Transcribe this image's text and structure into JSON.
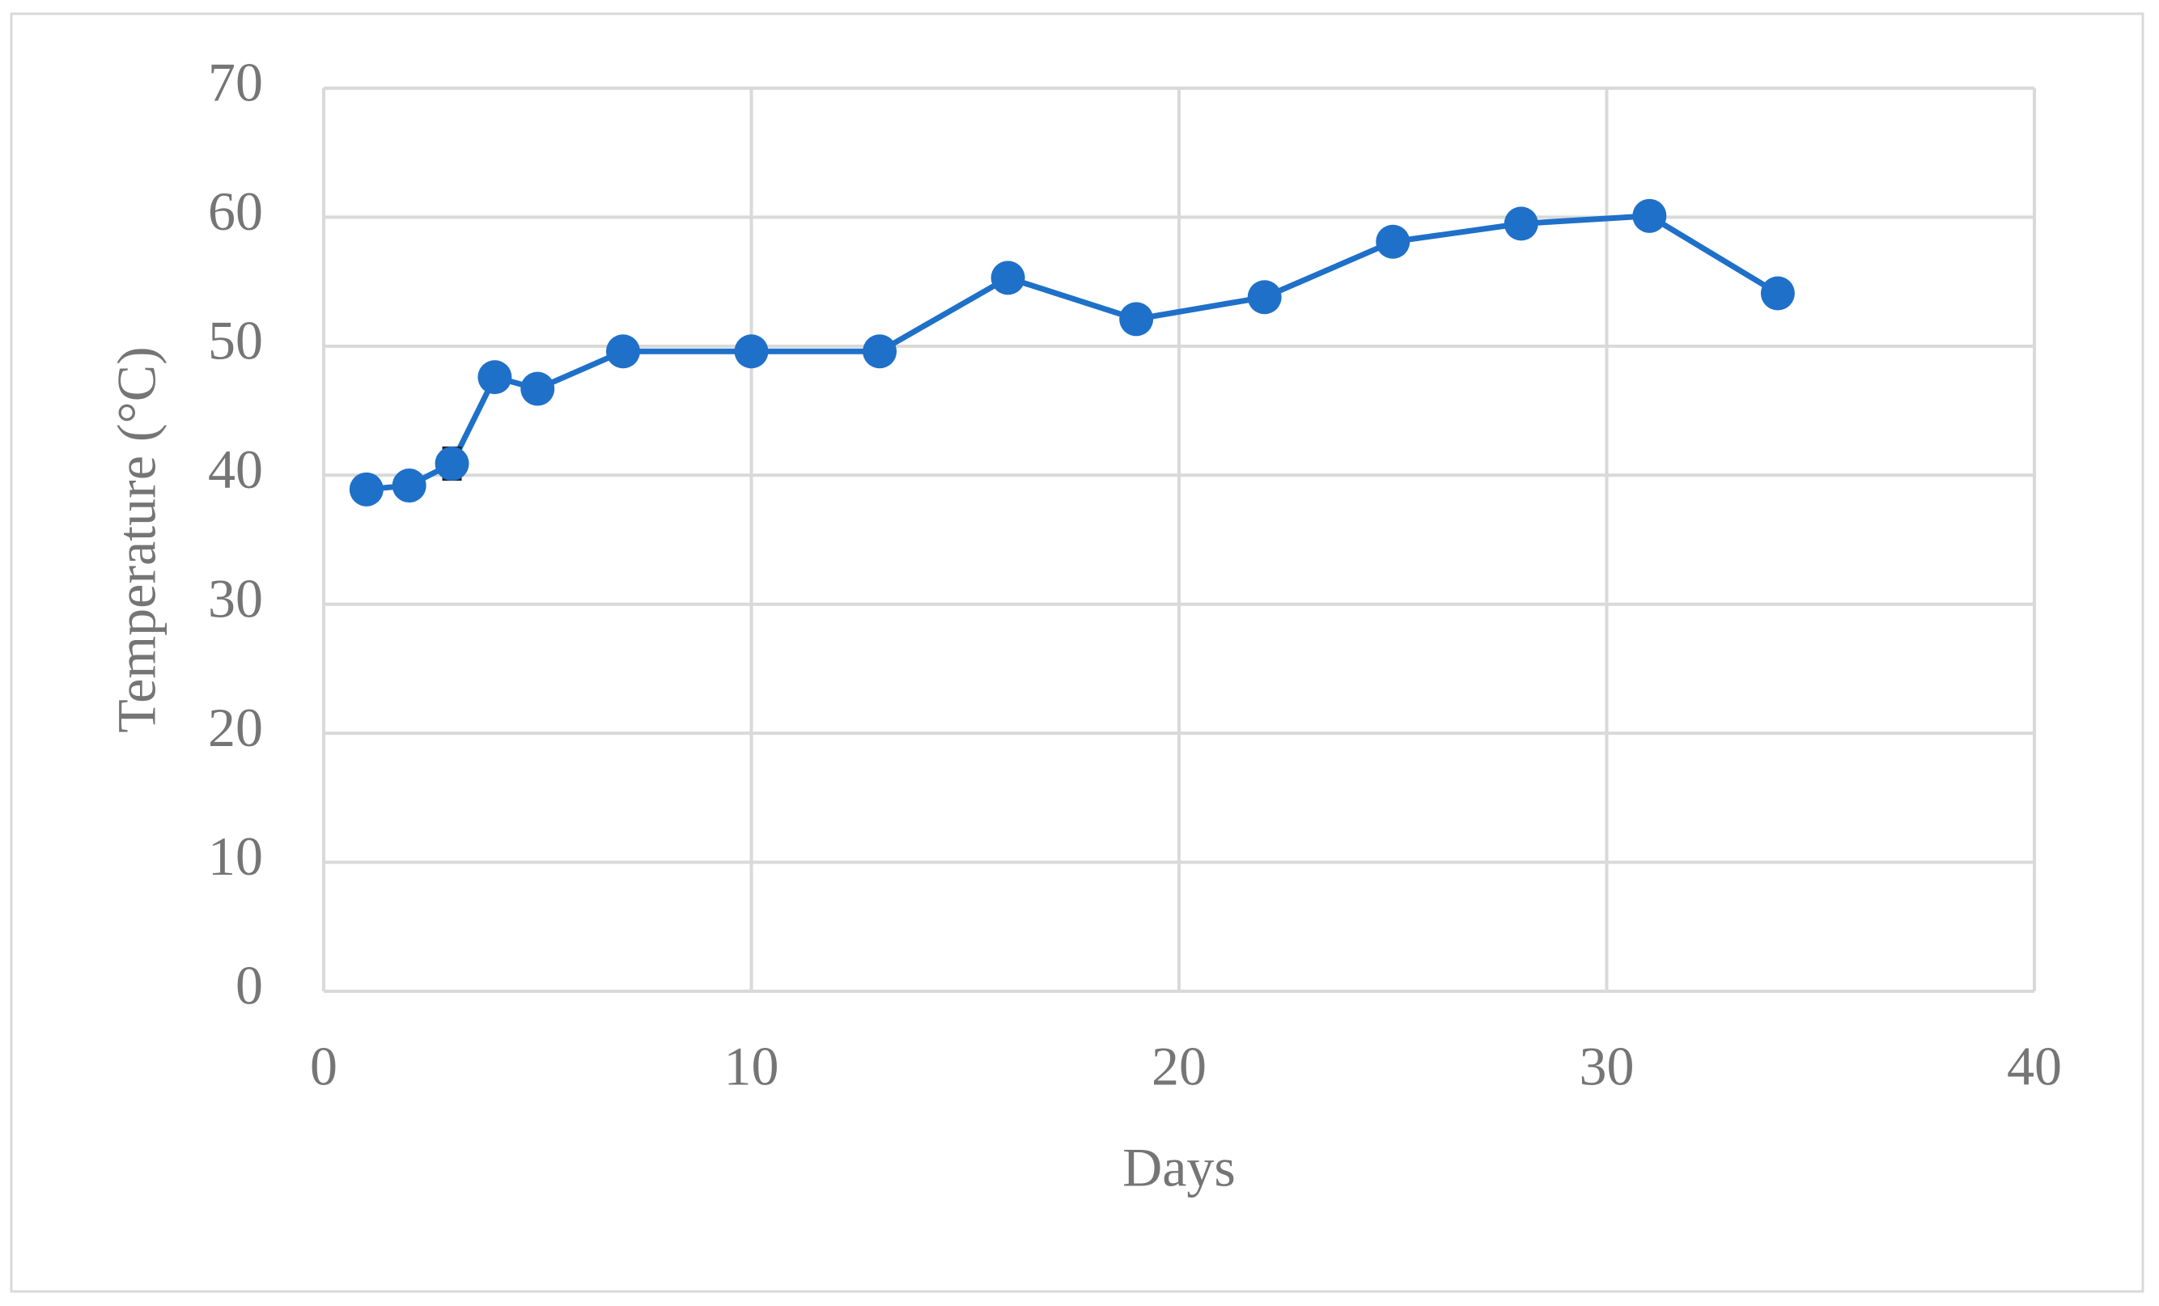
{
  "chart_data": {
    "type": "line",
    "x_label": "Days",
    "y_label": "Temperature (°C)",
    "x": [
      1,
      2,
      3,
      4,
      5,
      7,
      10,
      13,
      16,
      19,
      22,
      25,
      28,
      31,
      34
    ],
    "series": [
      {
        "name": "Temperature",
        "color": "#1f70c8",
        "values": [
          38.9,
          39.2,
          40.9,
          47.6,
          46.7,
          49.6,
          49.6,
          49.6,
          55.3,
          52.1,
          53.8,
          58.1,
          59.5,
          60.1,
          54.1
        ],
        "errors": [
          0.3,
          0.4,
          1.2,
          0.8,
          0.4,
          0.3,
          0.3,
          0.3,
          0.4,
          0.6,
          0.3,
          0.3,
          0.3,
          0.3,
          0.8
        ]
      }
    ],
    "xlim": [
      0,
      40
    ],
    "xticks": [
      0,
      10,
      20,
      30,
      40
    ],
    "ylim": [
      0,
      70
    ],
    "yticks": [
      0,
      10,
      20,
      30,
      40,
      50,
      60,
      70
    ],
    "grid": true,
    "grid_color": "#d9d9d9"
  }
}
